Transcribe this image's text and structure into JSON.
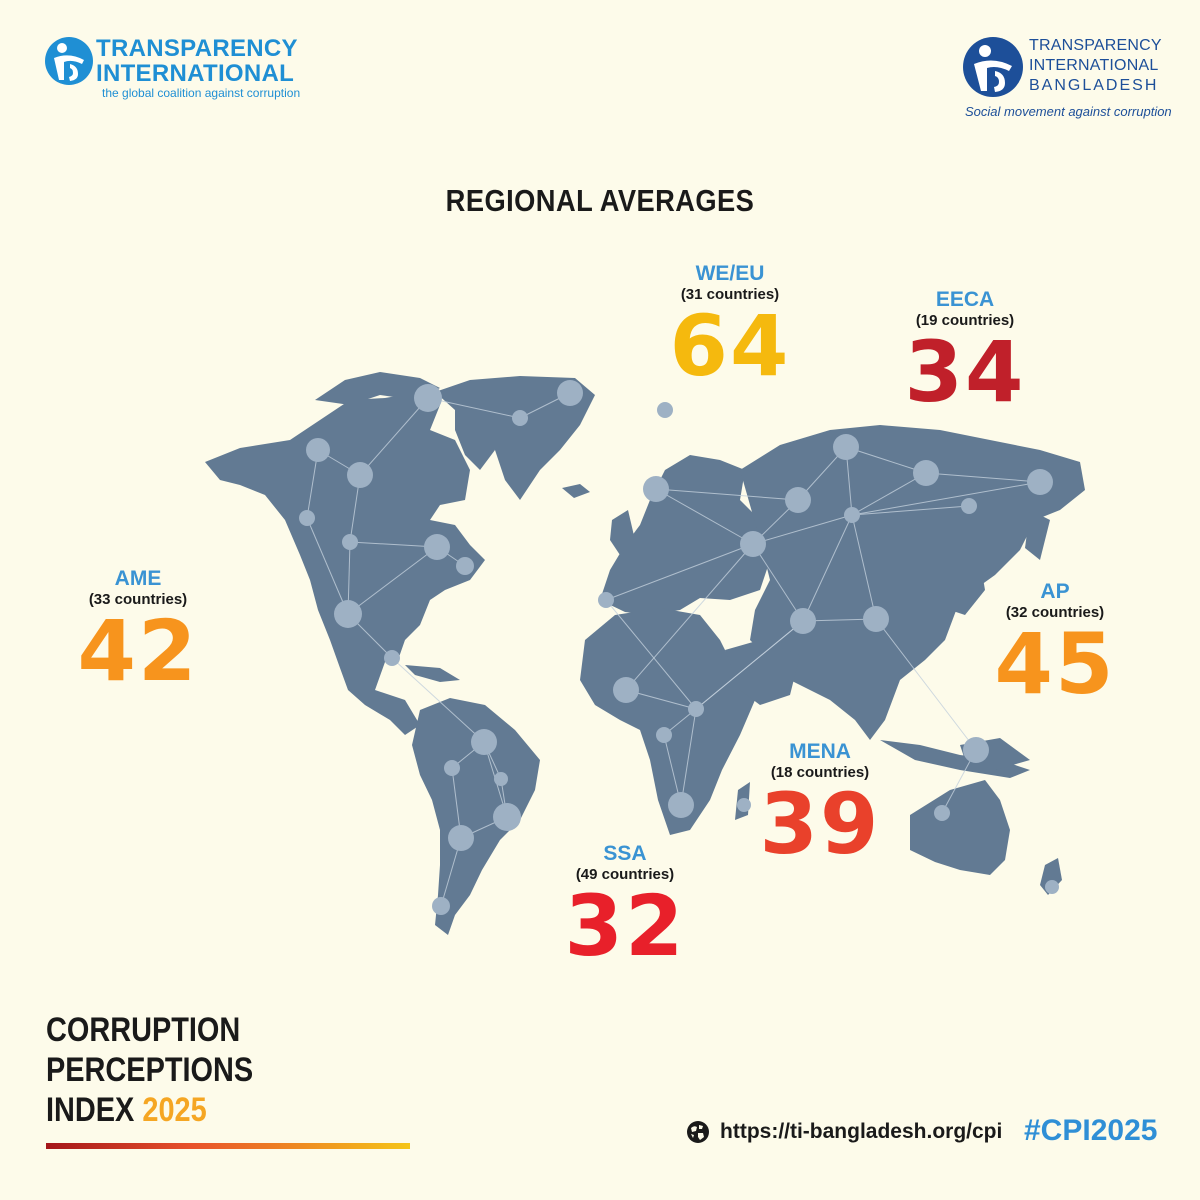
{
  "logos": {
    "ti": {
      "line1": "TRANSPARENCY",
      "line2": "INTERNATIONAL",
      "tagline": "the global coalition against corruption"
    },
    "tib": {
      "line1": "TRANSPARENCY",
      "line2": "INTERNATIONAL",
      "line3": "BANGLADESH",
      "tagline": "Social movement against corruption"
    }
  },
  "title": "REGIONAL AVERAGES",
  "map": {
    "land_color": "#627a93",
    "node_color": "#9eb1c4",
    "regions": [
      {
        "id": "we-eu",
        "code": "WE/EU",
        "countries": "(31 countries)",
        "score": "64",
        "color": "#f5b90e"
      },
      {
        "id": "eeca",
        "code": "EECA",
        "countries": "(19 countries)",
        "score": "34",
        "color": "#c0202a"
      },
      {
        "id": "ame",
        "code": "AME",
        "countries": "(33 countries)",
        "score": "42",
        "color": "#f7941d"
      },
      {
        "id": "ap",
        "code": "AP",
        "countries": "(32 countries)",
        "score": "45",
        "color": "#f7941d"
      },
      {
        "id": "mena",
        "code": "MENA",
        "countries": "(18 countries)",
        "score": "39",
        "color": "#e9412b"
      },
      {
        "id": "ssa",
        "code": "SSA",
        "countries": "(49 countries)",
        "score": "32",
        "color": "#e8202a"
      }
    ]
  },
  "footer": {
    "cpi_line1": "CORRUPTION",
    "cpi_line2": "PERCEPTIONS",
    "cpi_line3": "INDEX",
    "cpi_year": "2025",
    "url": "https://ti-bangladesh.org/cpi",
    "hashtag": "#CPI2025"
  },
  "colors": {
    "background": "#fdfbea",
    "ti_blue": "#1f8fd4",
    "tib_blue": "#1d4f99",
    "region_label_blue": "#3a93d3"
  },
  "icons": [
    "ti-emblem-icon",
    "tib-emblem-icon",
    "globe-icon"
  ]
}
